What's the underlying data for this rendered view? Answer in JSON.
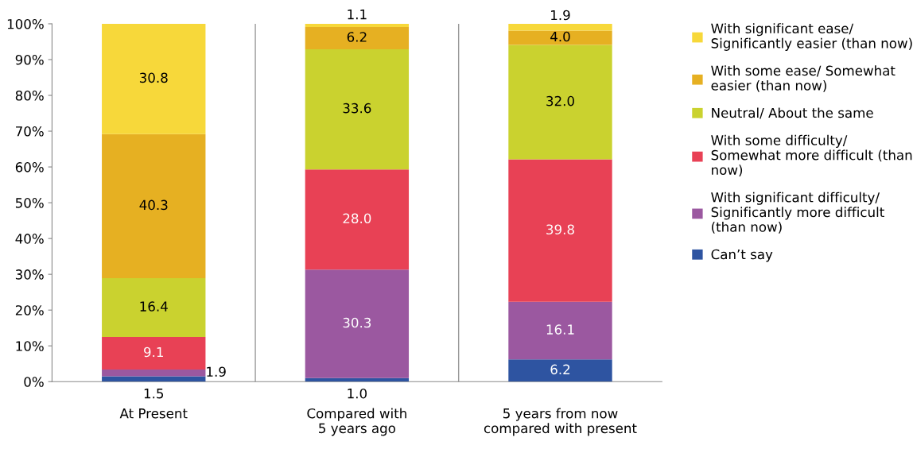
{
  "chart_data": {
    "type": "bar",
    "stacked": true,
    "categories": [
      "At Present",
      "Compared with\n5 years ago",
      "5 years from now\ncompared with present"
    ],
    "series": [
      {
        "name": "Can’t say",
        "color": "#2e54a1",
        "values": [
          1.5,
          1.0,
          6.2
        ],
        "value_labels": [
          "1.5",
          "1.0",
          "6.2"
        ]
      },
      {
        "name": "With significant difficulty/\nSignificantly more difficult\n(than now)",
        "color": "#9b58a0",
        "values": [
          1.9,
          30.3,
          16.1
        ],
        "value_labels": [
          "1.9",
          "30.3",
          "16.1"
        ]
      },
      {
        "name": "With some difficulty/\nSomewhat more difficult (than\nnow)",
        "color": "#e84155",
        "values": [
          9.1,
          28.0,
          39.8
        ],
        "value_labels": [
          "9.1",
          "28.0",
          "39.8"
        ]
      },
      {
        "name": "Neutral/ About the same",
        "color": "#cad22f",
        "values": [
          16.4,
          33.6,
          32.0
        ],
        "value_labels": [
          "16.4",
          "33.6",
          "32.0"
        ]
      },
      {
        "name": "With some ease/ Somewhat\neasier (than now)",
        "color": "#e6b022",
        "values": [
          40.3,
          6.2,
          4.0
        ],
        "value_labels": [
          "40.3",
          "6.2",
          "4.0"
        ]
      },
      {
        "name": "With significant ease/\nSignificantly easier (than now)",
        "color": "#f7d83a",
        "values": [
          30.8,
          1.1,
          1.9
        ],
        "value_labels": [
          "30.8",
          "1.1",
          "1.9"
        ]
      }
    ],
    "ylim": [
      0,
      100
    ],
    "yticks": [
      {
        "value": 0,
        "label": "0%"
      },
      {
        "value": 10,
        "label": "10%"
      },
      {
        "value": 20,
        "label": "20%"
      },
      {
        "value": 30,
        "label": "30%"
      },
      {
        "value": 40,
        "label": "40%"
      },
      {
        "value": 50,
        "label": "50%"
      },
      {
        "value": 60,
        "label": "60%"
      },
      {
        "value": 70,
        "label": "70%"
      },
      {
        "value": 80,
        "label": "80%"
      },
      {
        "value": 90,
        "label": "90%"
      },
      {
        "value": 100,
        "label": "100%"
      }
    ],
    "grid": "x",
    "legend": "right"
  }
}
